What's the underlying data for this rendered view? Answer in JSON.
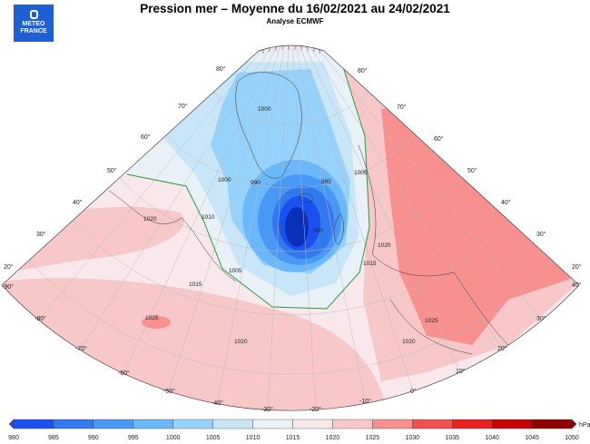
{
  "header": {
    "title": "Pression mer – Moyenne du 16/02/2021 au 24/02/2021",
    "subtitle": "Analyse ECMWF",
    "logo_text": [
      "METEO",
      "FRANCE"
    ]
  },
  "map": {
    "projection": "polar-stereographic sector",
    "longitude_labels": [
      "-90°",
      "-80°",
      "-70°",
      "-60°",
      "-50°",
      "-40°",
      "-30°",
      "-20°",
      "-10°",
      "0°",
      "10°",
      "20°",
      "30°",
      "40°"
    ],
    "latitude_labels_left": [
      "20°",
      "30°",
      "40°",
      "50°",
      "60°",
      "70°",
      "80°"
    ],
    "latitude_labels_right": [
      "80°",
      "70°",
      "60°",
      "50°",
      "40°",
      "30°",
      "20°"
    ],
    "isobar_labels": [
      "1020",
      "1025",
      "1020",
      "1020",
      "1025",
      "1015",
      "1005",
      "1010",
      "1000",
      "990",
      "990",
      "995",
      "1005",
      "1015",
      "1020",
      "1000"
    ],
    "highlighted_isobar": "1015",
    "highlight_color": "#2e9a3a"
  },
  "legend": {
    "unit": "hPa",
    "ticks": [
      "980",
      "985",
      "990",
      "995",
      "1000",
      "1005",
      "1010",
      "1015",
      "1020",
      "1025",
      "1030",
      "1035",
      "1040",
      "1045",
      "1050"
    ],
    "colors": [
      "#1a50f0",
      "#3278ee",
      "#4a98f5",
      "#6ab8fa",
      "#96d2fa",
      "#c8e6f8",
      "#e8f0f8",
      "#f8e8ec",
      "#f8c8c8",
      "#f89090",
      "#f05050",
      "#e82020",
      "#c80000",
      "#900000"
    ]
  }
}
